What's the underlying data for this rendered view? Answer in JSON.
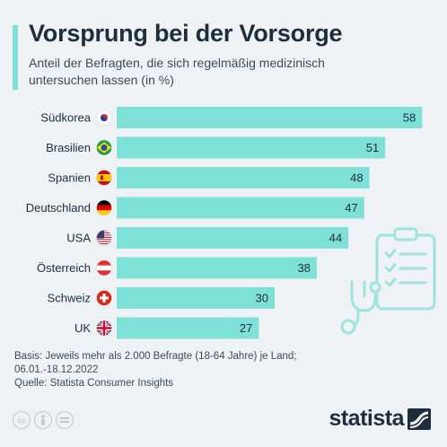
{
  "title": "Vorsprung bei der Vorsorge",
  "subtitle": "Anteil der Befragten, die sich regelmäßig medizinisch untersuchen lassen (in %)",
  "colors": {
    "bar": "#7fe0d8",
    "text": "#1f2d3d",
    "background": "#eef2f5",
    "illustration": "#9fe3de"
  },
  "chart_data": {
    "type": "bar",
    "orientation": "horizontal",
    "categories": [
      "Südkorea",
      "Brasilien",
      "Spanien",
      "Deutschland",
      "USA",
      "Österreich",
      "Schweiz",
      "UK"
    ],
    "flags": [
      "south-korea-flag-icon",
      "brazil-flag-icon",
      "spain-flag-icon",
      "germany-flag-icon",
      "usa-flag-icon",
      "austria-flag-icon",
      "switzerland-flag-icon",
      "uk-flag-icon"
    ],
    "values": [
      58,
      51,
      48,
      47,
      44,
      38,
      30,
      27
    ],
    "xlim": [
      0,
      60
    ],
    "grid": false,
    "data_labels": true
  },
  "footnote": {
    "basis": "Basis: Jeweils mehr als 2.000 Befragte (18-64 Jahre) je Land;",
    "period": "06.01.-18.12.2022",
    "source": "Quelle: Statista Consumer Insights"
  },
  "license_icons": [
    "cc-icon",
    "by-icon",
    "nd-icon"
  ],
  "brand": {
    "name": "statista",
    "logo_icon": "statista-wave-icon"
  }
}
